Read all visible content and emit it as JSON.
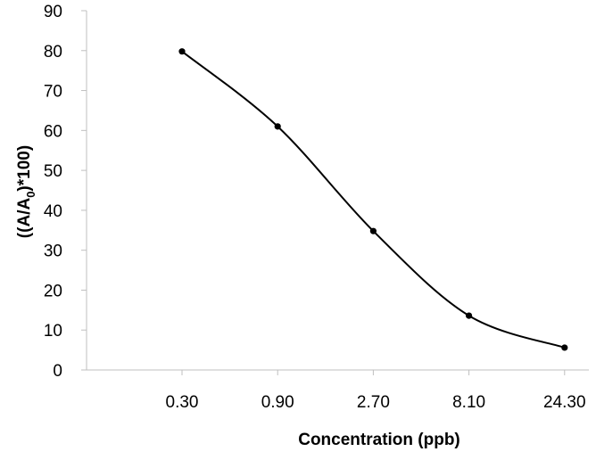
{
  "chart_data": {
    "type": "line",
    "title": "",
    "xlabel": "Concentration (ppb)",
    "ylabel": {
      "main": "((A/A",
      "subscript": "0",
      "tail": ")*100)"
    },
    "categories": [
      "0.30",
      "0.90",
      "2.70",
      "8.10",
      "24.30"
    ],
    "values": [
      79.8,
      61.0,
      34.8,
      13.6,
      5.6
    ],
    "ylim": [
      0,
      90
    ],
    "yticks": [
      0,
      10,
      20,
      30,
      40,
      50,
      60,
      70,
      80,
      90
    ],
    "grid": false,
    "legend": "none",
    "smooth": true,
    "markers": true,
    "colors": {
      "line": "#000000",
      "marker": "#000000",
      "axis": "#bfbfbf"
    }
  }
}
